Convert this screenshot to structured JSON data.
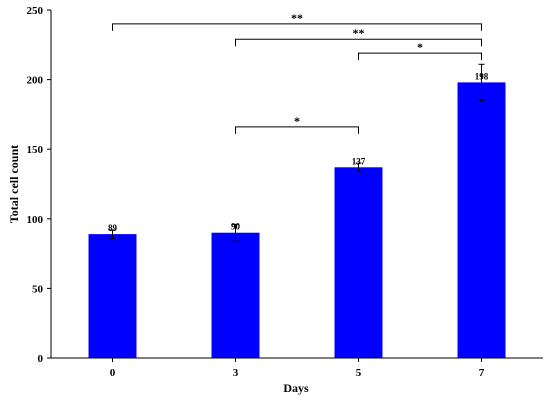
{
  "chart_data": {
    "type": "bar",
    "title": "",
    "xlabel": "Days",
    "ylabel": "Total cell count",
    "categories": [
      "0",
      "3",
      "5",
      "7"
    ],
    "values": [
      89,
      90,
      137,
      198
    ],
    "errors": [
      3,
      6,
      3,
      13
    ],
    "data_labels": [
      "89",
      "90",
      "137",
      "198"
    ],
    "ylim": [
      0,
      250
    ],
    "yticks": [
      0,
      50,
      100,
      150,
      200,
      250
    ],
    "bar_color": "#0000FF",
    "grid": false,
    "legend": "none",
    "significance": [
      {
        "from": "0",
        "to": "7",
        "label": "**",
        "level": 240
      },
      {
        "from": "3",
        "to": "7",
        "label": "**",
        "level": 229
      },
      {
        "from": "5",
        "to": "7",
        "label": "*",
        "level": 219
      },
      {
        "from": "3",
        "to": "5",
        "label": "*",
        "level": 166
      }
    ]
  }
}
